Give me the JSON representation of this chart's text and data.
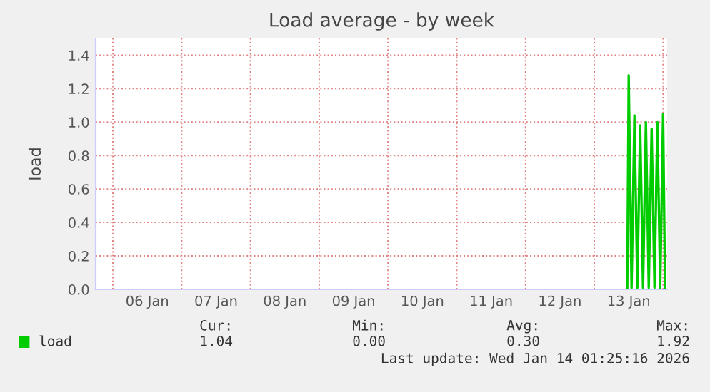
{
  "chart_data": {
    "type": "line",
    "title": "Load average - by week",
    "ylabel": "load",
    "x": [
      "2026-01-13T11:30",
      "2026-01-13T12:00",
      "2026-01-13T13:00",
      "2026-01-13T14:00",
      "2026-01-13T15:00",
      "2026-01-13T16:00",
      "2026-01-13T17:00",
      "2026-01-13T18:00",
      "2026-01-13T19:00",
      "2026-01-13T20:00",
      "2026-01-13T21:00",
      "2026-01-13T22:00",
      "2026-01-13T23:00",
      "2026-01-14T00:00",
      "2026-01-14T00:40"
    ],
    "series": [
      {
        "name": "load",
        "color": "#00cc00",
        "values": [
          0.01,
          1.28,
          0.01,
          1.04,
          0.01,
          0.98,
          0.01,
          1.0,
          0.01,
          0.96,
          0.01,
          1.0,
          0.01,
          1.05,
          0.01
        ]
      }
    ],
    "xlim": [
      "2026-01-05T18:00",
      "2026-01-14T01:25"
    ],
    "xticks": [
      {
        "value": "2026-01-06T00:00",
        "label": null
      },
      {
        "value": "2026-01-06T12:00",
        "label": "06 Jan"
      },
      {
        "value": "2026-01-07T00:00",
        "label": null
      },
      {
        "value": "2026-01-07T12:00",
        "label": "07 Jan"
      },
      {
        "value": "2026-01-08T00:00",
        "label": null
      },
      {
        "value": "2026-01-08T12:00",
        "label": "08 Jan"
      },
      {
        "value": "2026-01-09T00:00",
        "label": null
      },
      {
        "value": "2026-01-09T12:00",
        "label": "09 Jan"
      },
      {
        "value": "2026-01-10T00:00",
        "label": null
      },
      {
        "value": "2026-01-10T12:00",
        "label": "10 Jan"
      },
      {
        "value": "2026-01-11T00:00",
        "label": null
      },
      {
        "value": "2026-01-11T12:00",
        "label": "11 Jan"
      },
      {
        "value": "2026-01-12T00:00",
        "label": null
      },
      {
        "value": "2026-01-12T12:00",
        "label": "12 Jan"
      },
      {
        "value": "2026-01-13T00:00",
        "label": null
      },
      {
        "value": "2026-01-13T12:00",
        "label": "13 Jan"
      },
      {
        "value": "2026-01-14T00:00",
        "label": null
      }
    ],
    "ylim": [
      0,
      1.5
    ],
    "yticks": [
      {
        "value": 0,
        "label": "0.0"
      },
      {
        "value": 0.2,
        "label": "0.2"
      },
      {
        "value": 0.4,
        "label": "0.4"
      },
      {
        "value": 0.6,
        "label": "0.6"
      },
      {
        "value": 0.8,
        "label": "0.8"
      },
      {
        "value": 1,
        "label": "1.0"
      },
      {
        "value": 1.2,
        "label": "1.2"
      },
      {
        "value": 1.4,
        "label": "1.4"
      }
    ],
    "grid": true,
    "legend": "bottom",
    "marker": "none",
    "line_style": "solid",
    "annotations": [
      "Cur:",
      "1.04",
      "Min:",
      "0.00",
      "Avg:",
      "0.30",
      "Max:",
      "1.92",
      "Last update: Wed Jan 14 01:25:16 2026"
    ]
  }
}
